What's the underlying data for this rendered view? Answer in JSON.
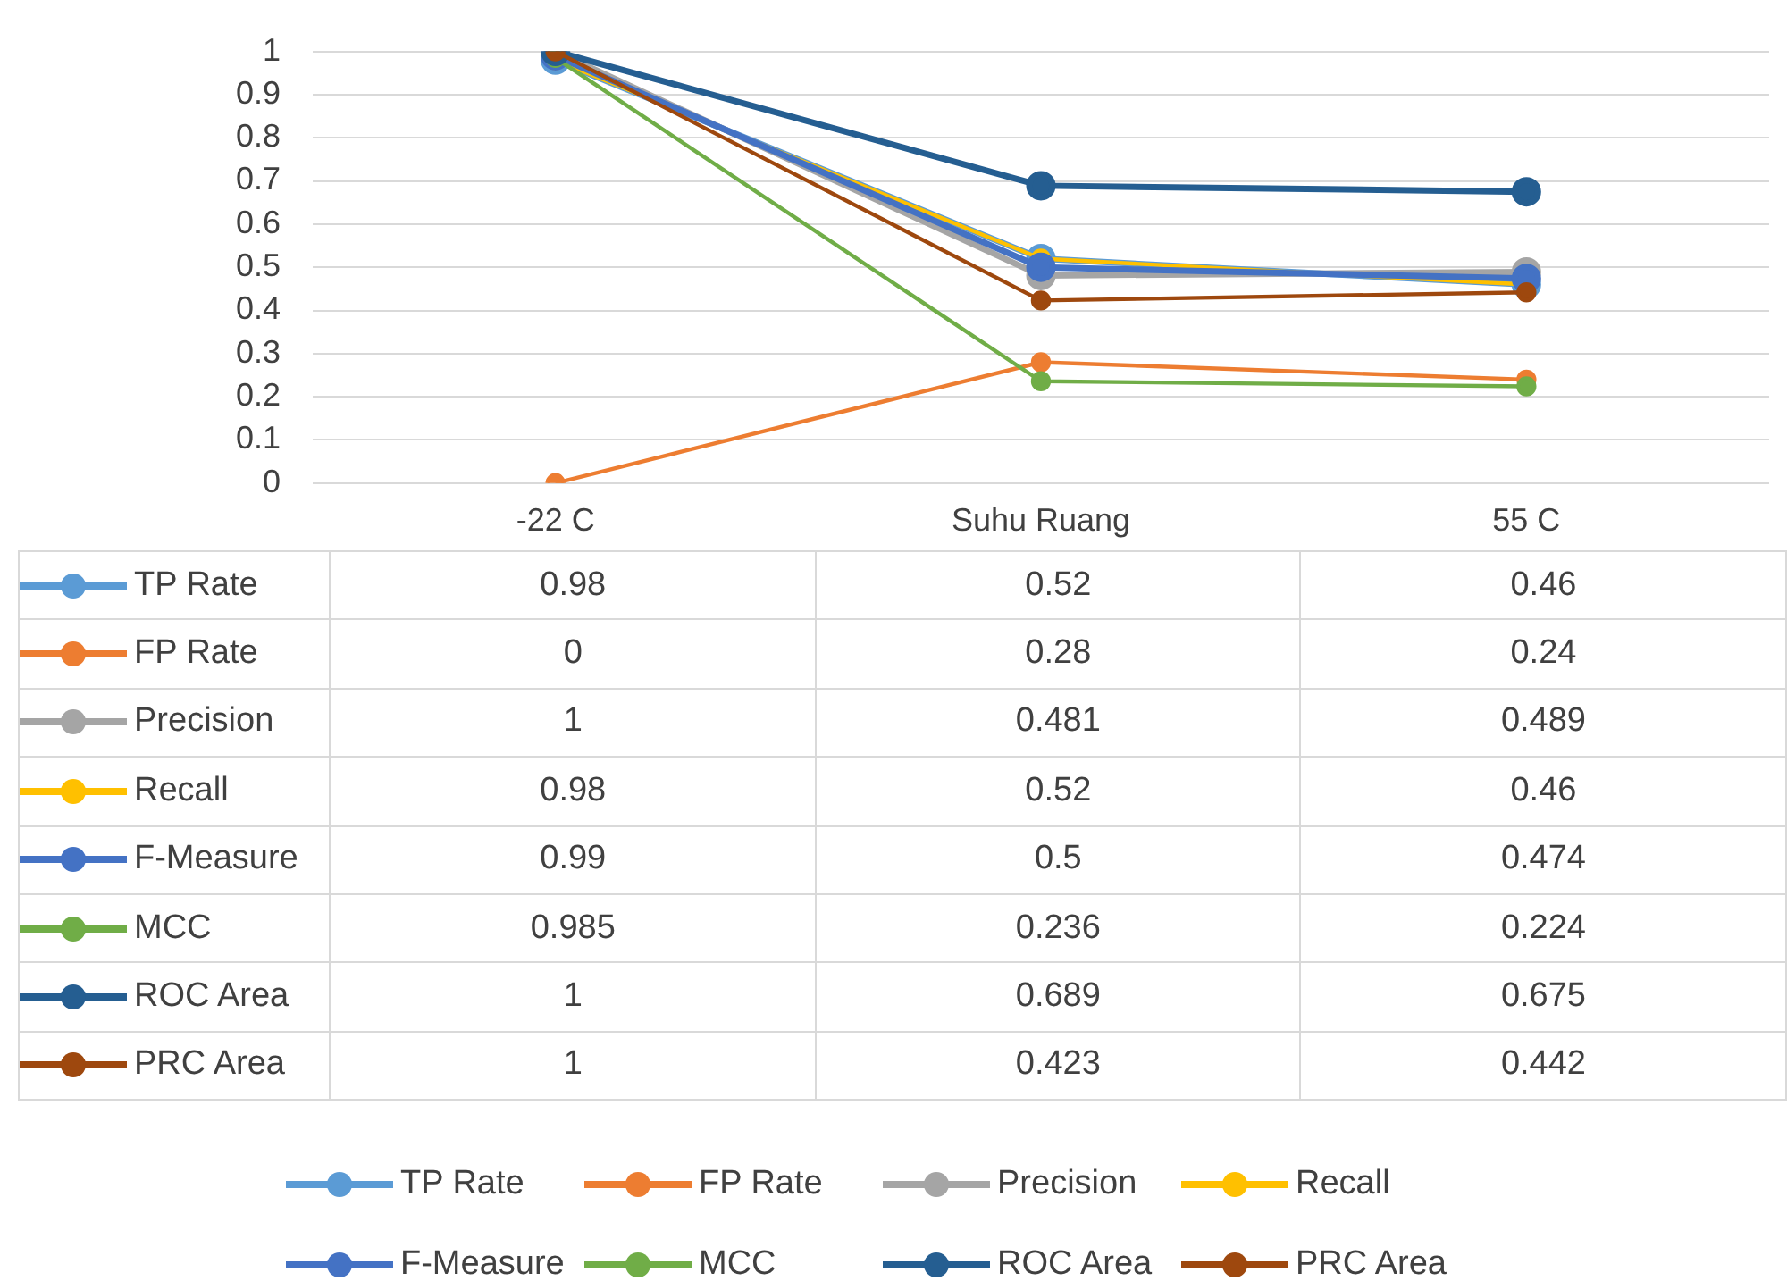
{
  "chart_data": {
    "type": "line",
    "categories": [
      "-22 C",
      "Suhu Ruang",
      "55 C"
    ],
    "series": [
      {
        "name": "TP Rate",
        "color": "#5b9bd5",
        "values": [
          0.98,
          0.52,
          0.46
        ]
      },
      {
        "name": "FP Rate",
        "color": "#ed7d31",
        "values": [
          0,
          0.28,
          0.24
        ]
      },
      {
        "name": "Precision",
        "color": "#a5a5a5",
        "values": [
          1,
          0.481,
          0.489
        ]
      },
      {
        "name": "Recall",
        "color": "#ffc000",
        "values": [
          0.98,
          0.52,
          0.46
        ]
      },
      {
        "name": "F-Measure",
        "color": "#4472c4",
        "values": [
          0.99,
          0.5,
          0.474
        ]
      },
      {
        "name": "MCC",
        "color": "#70ad47",
        "values": [
          0.985,
          0.236,
          0.224
        ]
      },
      {
        "name": "ROC Area",
        "color": "#255e91",
        "values": [
          1,
          0.689,
          0.675
        ]
      },
      {
        "name": "PRC Area",
        "color": "#9e480e",
        "values": [
          1,
          0.423,
          0.442
        ]
      }
    ],
    "ylim": [
      0,
      1
    ],
    "yticks": [
      0,
      0.1,
      0.2,
      0.3,
      0.4,
      0.5,
      0.6,
      0.7,
      0.8,
      0.9,
      1
    ],
    "grid": "y",
    "legend": "bottom",
    "marker": "circle",
    "line_style": "solid",
    "data_labels": true
  }
}
